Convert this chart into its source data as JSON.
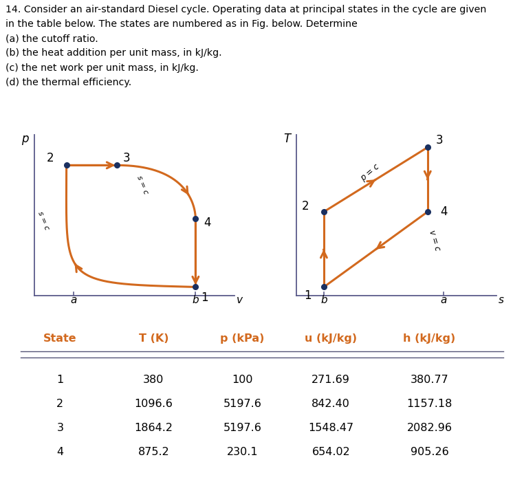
{
  "title_text": "14. Consider an air-standard Diesel cycle. Operating data at principal states in the cycle are given\nin the table below. The states are numbered as in Fig. below. Determine\n(a) the cutoff ratio.\n(b) the heat addition per unit mass, in kJ/kg.\n(c) the net work per unit mass, in kJ/kg.\n(d) the thermal efficiency.",
  "orange_color": "#D2691E",
  "dot_color": "#1a3060",
  "table_header_color": "#D2691E",
  "table_headers": [
    "State",
    "T (K)",
    "p (kPa)",
    "u (kJ/kg)",
    "h (kJ/kg)"
  ],
  "table_data": [
    [
      "1",
      "380",
      "100",
      "271.69",
      "380.77"
    ],
    [
      "2",
      "1096.6",
      "5197.6",
      "842.40",
      "1157.18"
    ],
    [
      "3",
      "1864.2",
      "5197.6",
      "1548.47",
      "2082.96"
    ],
    [
      "4",
      "875.2",
      "230.1",
      "654.02",
      "905.26"
    ]
  ],
  "pv_points": {
    "1": [
      0.78,
      0.1
    ],
    "2": [
      0.22,
      0.78
    ],
    "3": [
      0.44,
      0.78
    ],
    "4": [
      0.78,
      0.48
    ]
  },
  "pv_curve12_ctrl": [
    0.18,
    0.12
  ],
  "pv_curve34_ctrl": [
    0.78,
    0.78
  ],
  "ts_points": {
    "1": [
      0.2,
      0.1
    ],
    "2": [
      0.2,
      0.52
    ],
    "3": [
      0.65,
      0.88
    ],
    "4": [
      0.65,
      0.52
    ]
  }
}
